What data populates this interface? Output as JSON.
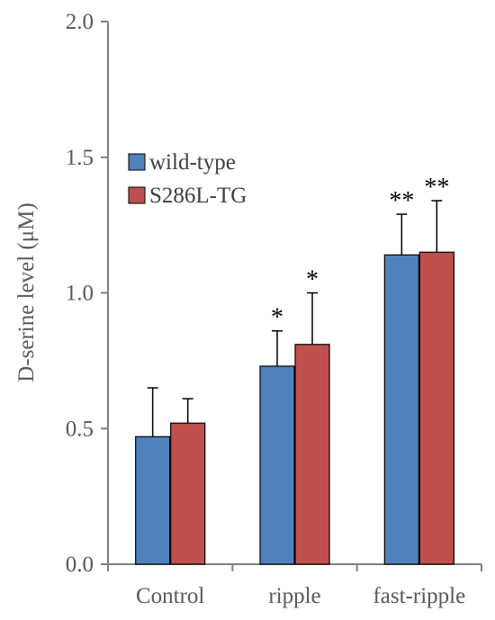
{
  "chart_data": {
    "type": "bar",
    "title": "",
    "xlabel": "",
    "ylabel": "D-serine level (μM)",
    "ylim": [
      0,
      2.0
    ],
    "yticks": [
      "0.0",
      "0.5",
      "1.0",
      "1.5",
      "2.0"
    ],
    "categories": [
      "Control",
      "ripple",
      "fast-ripple"
    ],
    "series": [
      {
        "name": "wild-type",
        "color": "#4f81bd",
        "values": [
          0.47,
          0.73,
          1.14
        ],
        "errors": [
          0.18,
          0.13,
          0.15
        ],
        "significance": [
          "",
          "*",
          "**"
        ]
      },
      {
        "name": "S286L-TG",
        "color": "#c0504d",
        "values": [
          0.52,
          0.81,
          1.15
        ],
        "errors": [
          0.09,
          0.19,
          0.19
        ],
        "significance": [
          "",
          "*",
          "**"
        ]
      }
    ],
    "legend_position": "upper-left",
    "grid": false,
    "error_bars": "upper"
  }
}
